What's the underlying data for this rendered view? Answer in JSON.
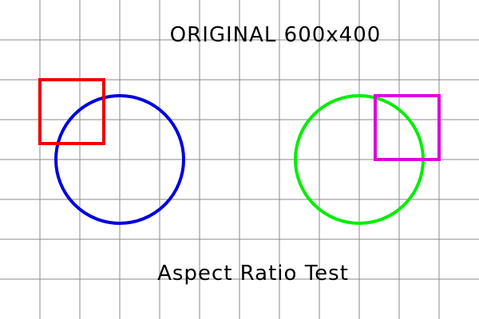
{
  "title": "ORIGINAL 600x400",
  "caption": "Aspect Ratio Test",
  "colors": {
    "background": "#ffffff",
    "grid": "#888888",
    "text": "#000000",
    "left_circle": "#0000dd",
    "left_square": "#ee0000",
    "right_circle": "#00ee00",
    "right_square": "#dd00dd"
  }
}
